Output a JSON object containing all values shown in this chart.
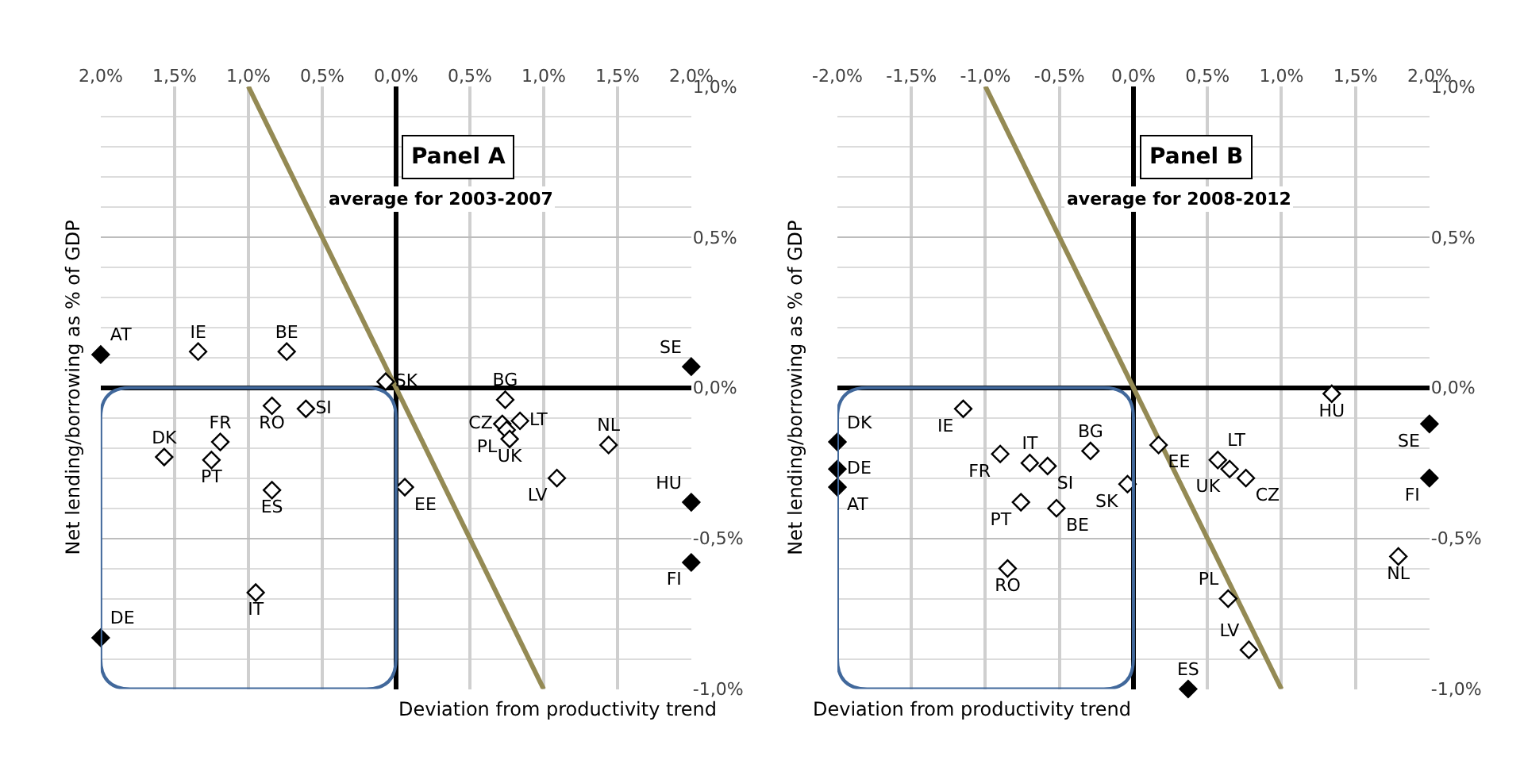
{
  "chart_data": [
    {
      "type": "scatter",
      "title": "Panel A",
      "subtitle": "average for 2003-2007",
      "xlabel": "Deviation from productivity trend",
      "ylabel": "Net lending/borrowing as % of GDP",
      "xlim": [
        -2.0,
        2.0
      ],
      "ylim": [
        -1.0,
        1.0
      ],
      "xticks": [
        {
          "value": -2.0,
          "label": "2,0%"
        },
        {
          "value": -1.5,
          "label": "1,5%"
        },
        {
          "value": -1.0,
          "label": "1,0%"
        },
        {
          "value": -0.5,
          "label": "0,5%"
        },
        {
          "value": 0,
          "label": "0,0%"
        },
        {
          "value": 0.5,
          "label": "0,5%"
        },
        {
          "value": 1.0,
          "label": "1,0%"
        },
        {
          "value": 1.5,
          "label": "1,5%"
        },
        {
          "value": 2.0,
          "label": "2,0%"
        }
      ],
      "yticks": [
        {
          "value": 1.0,
          "label": "1,0%"
        },
        {
          "value": 0.5,
          "label": "0,5%"
        },
        {
          "value": 0,
          "label": "0,0%"
        },
        {
          "value": -0.5,
          "label": "-0,5%"
        },
        {
          "value": -1.0,
          "label": "-1,0%"
        }
      ],
      "grid": true,
      "marker": "diamond",
      "legend": false,
      "series": [
        {
          "type": "line",
          "marker": "none",
          "color": "#948a54",
          "x": [
            -1.0,
            1.0
          ],
          "values": [
            1.0,
            -1.0
          ]
        },
        {
          "name": "AT",
          "color": "#000000",
          "x": [
            -2.0
          ],
          "values": [
            0.11
          ]
        },
        {
          "name": "IE",
          "color": "#ffffff",
          "x": [
            -1.34
          ],
          "values": [
            0.12
          ]
        },
        {
          "name": "BE",
          "color": "#ffffff",
          "x": [
            -0.74
          ],
          "values": [
            0.12
          ]
        },
        {
          "name": "SE",
          "color": "#000000",
          "x": [
            2.0
          ],
          "values": [
            0.07
          ]
        },
        {
          "name": "SK",
          "color": "#ffffff",
          "x": [
            -0.07
          ],
          "values": [
            0.02
          ]
        },
        {
          "name": "DK",
          "color": "#ffffff",
          "x": [
            -1.57
          ],
          "values": [
            -0.23
          ]
        },
        {
          "name": "FR",
          "color": "#ffffff",
          "x": [
            -1.19
          ],
          "values": [
            -0.18
          ]
        },
        {
          "name": "PT",
          "color": "#ffffff",
          "x": [
            -1.25
          ],
          "values": [
            -0.24
          ]
        },
        {
          "name": "RO",
          "color": "#ffffff",
          "x": [
            -0.84
          ],
          "values": [
            -0.06
          ]
        },
        {
          "name": "SI",
          "color": "#ffffff",
          "x": [
            -0.61
          ],
          "values": [
            -0.07
          ]
        },
        {
          "name": "ES",
          "color": "#ffffff",
          "x": [
            -0.84
          ],
          "values": [
            -0.34
          ]
        },
        {
          "name": "IT",
          "color": "#ffffff",
          "x": [
            -0.95
          ],
          "values": [
            -0.68
          ]
        },
        {
          "name": "DE",
          "color": "#000000",
          "x": [
            -2.0
          ],
          "values": [
            -0.83
          ]
        },
        {
          "name": "EE",
          "color": "#ffffff",
          "x": [
            0.06
          ],
          "values": [
            -0.33
          ]
        },
        {
          "name": "BG",
          "color": "#ffffff",
          "x": [
            0.74
          ],
          "values": [
            -0.04
          ]
        },
        {
          "name": "CZ",
          "color": "#ffffff",
          "x": [
            0.72
          ],
          "values": [
            -0.12
          ]
        },
        {
          "name": "LT",
          "color": "#ffffff",
          "x": [
            0.84
          ],
          "values": [
            -0.11
          ]
        },
        {
          "name": "PL",
          "color": "#ffffff",
          "x": [
            0.75
          ],
          "values": [
            -0.14
          ]
        },
        {
          "name": "UK",
          "color": "#ffffff",
          "x": [
            0.77
          ],
          "values": [
            -0.17
          ]
        },
        {
          "name": "NL",
          "color": "#ffffff",
          "x": [
            1.44
          ],
          "values": [
            -0.19
          ]
        },
        {
          "name": "LV",
          "color": "#ffffff",
          "x": [
            1.09
          ],
          "values": [
            -0.3
          ]
        },
        {
          "name": "HU",
          "color": "#000000",
          "x": [
            2.0
          ],
          "values": [
            -0.38
          ]
        },
        {
          "name": "FI",
          "color": "#000000",
          "x": [
            2.0
          ],
          "values": [
            -0.58
          ]
        }
      ]
    },
    {
      "type": "scatter",
      "title": "Panel B",
      "subtitle": "average for 2008-2012",
      "xlabel": "Deviation from productivity trend",
      "ylabel": "Net lending/borrowing as % of GDP",
      "xlim": [
        -2.0,
        2.0
      ],
      "ylim": [
        -1.0,
        1.0
      ],
      "xticks": [
        {
          "value": -2.0,
          "label": "-2,0%"
        },
        {
          "value": -1.5,
          "label": "-1,5%"
        },
        {
          "value": -1.0,
          "label": "-1,0%"
        },
        {
          "value": -0.5,
          "label": "-0,5%"
        },
        {
          "value": 0,
          "label": "0,0%"
        },
        {
          "value": 0.5,
          "label": "0,5%"
        },
        {
          "value": 1.0,
          "label": "1,0%"
        },
        {
          "value": 1.5,
          "label": "1,5%"
        },
        {
          "value": 2.0,
          "label": "2,0%"
        }
      ],
      "yticks": [
        {
          "value": 1.0,
          "label": "1,0%"
        },
        {
          "value": 0.5,
          "label": "0,5%"
        },
        {
          "value": 0,
          "label": "0,0%"
        },
        {
          "value": -0.5,
          "label": "-0,5%"
        },
        {
          "value": -1.0,
          "label": "-1,0%"
        }
      ],
      "grid": true,
      "marker": "diamond",
      "legend": false,
      "series": [
        {
          "type": "line",
          "marker": "none",
          "color": "#948a54",
          "x": [
            -1.0,
            1.0
          ],
          "values": [
            1.0,
            -1.0
          ]
        },
        {
          "name": "DK",
          "color": "#000000",
          "x": [
            -2.0
          ],
          "values": [
            -0.18
          ]
        },
        {
          "name": "DE",
          "color": "#000000",
          "x": [
            -2.0
          ],
          "values": [
            -0.27
          ]
        },
        {
          "name": "AT",
          "color": "#000000",
          "x": [
            -2.0
          ],
          "values": [
            -0.33
          ]
        },
        {
          "name": "IE",
          "color": "#ffffff",
          "x": [
            -1.15
          ],
          "values": [
            -0.07
          ]
        },
        {
          "name": "FR",
          "color": "#ffffff",
          "x": [
            -0.9
          ],
          "values": [
            -0.22
          ]
        },
        {
          "name": "IT",
          "color": "#ffffff",
          "x": [
            -0.7
          ],
          "values": [
            -0.25
          ]
        },
        {
          "name": "SI",
          "color": "#ffffff",
          "x": [
            -0.58
          ],
          "values": [
            -0.26
          ]
        },
        {
          "name": "BG",
          "color": "#ffffff",
          "x": [
            -0.29
          ],
          "values": [
            -0.21
          ]
        },
        {
          "name": "PT",
          "color": "#ffffff",
          "x": [
            -0.76
          ],
          "values": [
            -0.38
          ]
        },
        {
          "name": "BE",
          "color": "#ffffff",
          "x": [
            -0.52
          ],
          "values": [
            -0.4
          ]
        },
        {
          "name": "SK",
          "color": "#ffffff",
          "x": [
            -0.04
          ],
          "values": [
            -0.32
          ]
        },
        {
          "name": "RO",
          "color": "#ffffff",
          "x": [
            -0.85
          ],
          "values": [
            -0.6
          ]
        },
        {
          "name": "EE",
          "color": "#ffffff",
          "x": [
            0.17
          ],
          "values": [
            -0.19
          ]
        },
        {
          "name": "LT",
          "color": "#ffffff",
          "x": [
            0.57
          ],
          "values": [
            -0.24
          ]
        },
        {
          "name": "UK",
          "color": "#ffffff",
          "x": [
            0.65
          ],
          "values": [
            -0.27
          ]
        },
        {
          "name": "CZ",
          "color": "#ffffff",
          "x": [
            0.76
          ],
          "values": [
            -0.3
          ]
        },
        {
          "name": "HU",
          "color": "#ffffff",
          "x": [
            1.34
          ],
          "values": [
            -0.02
          ]
        },
        {
          "name": "SE",
          "color": "#000000",
          "x": [
            2.0
          ],
          "values": [
            -0.12
          ]
        },
        {
          "name": "FI",
          "color": "#000000",
          "x": [
            2.0
          ],
          "values": [
            -0.3
          ]
        },
        {
          "name": "NL",
          "color": "#ffffff",
          "x": [
            1.79
          ],
          "values": [
            -0.56
          ]
        },
        {
          "name": "PL",
          "color": "#ffffff",
          "x": [
            0.64
          ],
          "values": [
            -0.7
          ]
        },
        {
          "name": "LV",
          "color": "#ffffff",
          "x": [
            0.78
          ],
          "values": [
            -0.87
          ]
        },
        {
          "name": "ES",
          "color": "#000000",
          "x": [
            0.37
          ],
          "values": [
            -1.0
          ]
        }
      ]
    }
  ]
}
